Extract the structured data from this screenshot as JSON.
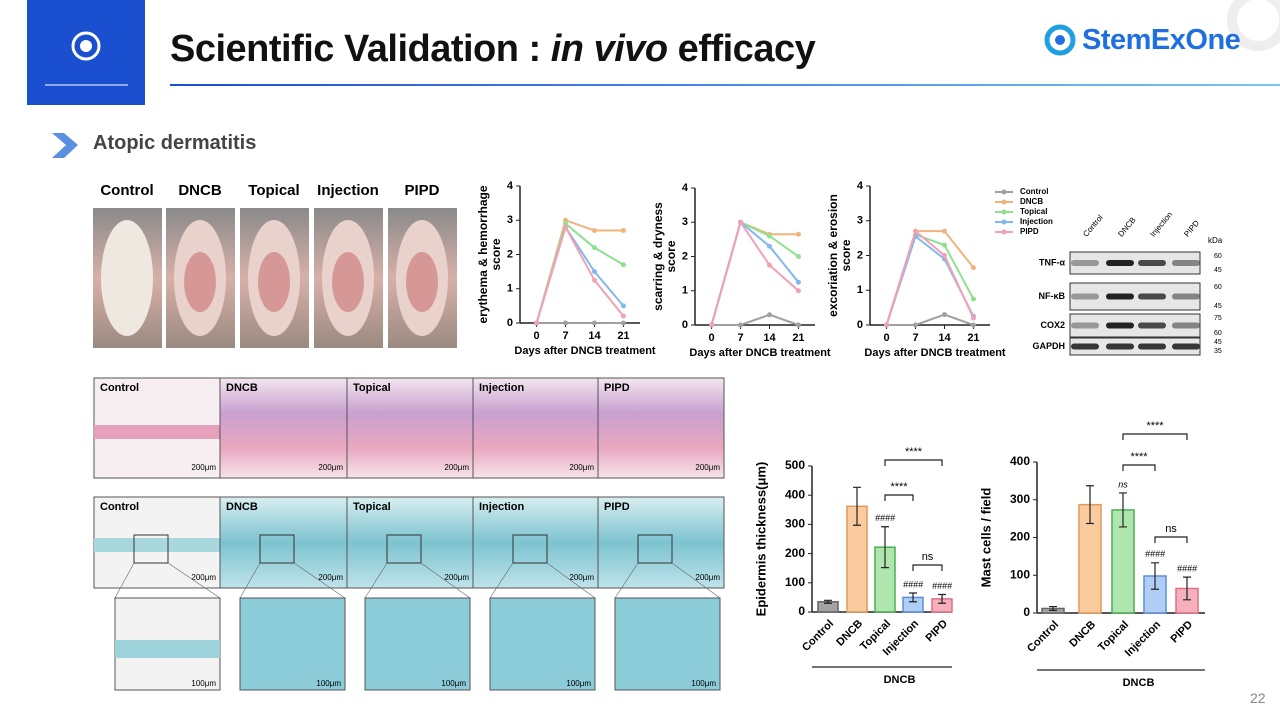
{
  "header": {
    "title": "Scientific Validation : ",
    "title_italic": "in vivo",
    "title_end": " efficacy",
    "logo": "StemExOne"
  },
  "section": "Atopic dermatitis",
  "groups": [
    "Control",
    "DNCB",
    "Topical",
    "Injection",
    "PIPD"
  ],
  "chart_data": [
    {
      "type": "line",
      "ylabel": [
        "erythema & hemorrhage",
        "score"
      ],
      "xlabel": "Days after DNCB treatment",
      "x": [
        0,
        7,
        14,
        21
      ],
      "xlim": [
        -4,
        25
      ],
      "xticks": [
        0,
        7,
        14,
        21
      ],
      "ylim": [
        0,
        4
      ],
      "yticks": [
        0,
        1,
        2,
        3,
        4
      ],
      "series": [
        {
          "color": "#a0a0a0",
          "values": [
            0,
            0,
            0,
            0
          ]
        },
        {
          "color": "#f2b47c",
          "values": [
            0,
            3,
            2.7,
            2.7
          ]
        },
        {
          "color": "#8fe08f",
          "values": [
            0,
            2.9,
            2.2,
            1.7
          ]
        },
        {
          "color": "#82b8f0",
          "values": [
            0,
            2.8,
            1.5,
            0.5
          ]
        },
        {
          "color": "#f4a0b4",
          "values": [
            0,
            2.8,
            1.25,
            0.2
          ]
        }
      ]
    },
    {
      "type": "line",
      "ylabel": [
        "scarring & dryness",
        "score"
      ],
      "xlabel": "Days after DNCB treatment",
      "x": [
        0,
        7,
        14,
        21
      ],
      "xlim": [
        -4,
        25
      ],
      "xticks": [
        0,
        7,
        14,
        21
      ],
      "ylim": [
        0,
        4
      ],
      "yticks": [
        0,
        1,
        2,
        3,
        4
      ],
      "series": [
        {
          "color": "#a0a0a0",
          "values": [
            0,
            0,
            0.3,
            0
          ]
        },
        {
          "color": "#f2b47c",
          "values": [
            0,
            3,
            2.65,
            2.65
          ]
        },
        {
          "color": "#8fe08f",
          "values": [
            0,
            3,
            2.6,
            2.0
          ]
        },
        {
          "color": "#82b8f0",
          "values": [
            0,
            3,
            2.3,
            1.25
          ]
        },
        {
          "color": "#f4a0b4",
          "values": [
            0,
            3,
            1.75,
            1.0
          ]
        }
      ]
    },
    {
      "type": "line",
      "ylabel": [
        "excoriation & erosion",
        "score"
      ],
      "xlabel": "Days after DNCB treatment",
      "x": [
        0,
        7,
        14,
        21
      ],
      "xlim": [
        -4,
        25
      ],
      "xticks": [
        0,
        7,
        14,
        21
      ],
      "ylim": [
        0,
        4
      ],
      "yticks": [
        0,
        1,
        2,
        3,
        4
      ],
      "series": [
        {
          "name": "Control",
          "color": "#a0a0a0",
          "values": [
            0,
            0,
            0.3,
            0
          ]
        },
        {
          "name": "DNCB",
          "color": "#f2b47c",
          "values": [
            0,
            2.7,
            2.7,
            1.65
          ]
        },
        {
          "name": "Topical",
          "color": "#8fe08f",
          "values": [
            0,
            2.6,
            2.3,
            0.75
          ]
        },
        {
          "name": "Injection",
          "color": "#82b8f0",
          "values": [
            0,
            2.55,
            1.9,
            0.25
          ]
        },
        {
          "name": "PIPD",
          "color": "#f4a0b4",
          "values": [
            0,
            2.7,
            2.0,
            0.2
          ]
        }
      ]
    },
    {
      "type": "bar",
      "ylabel": "Epidermis thickness(μm)",
      "categories": [
        "Control",
        "DNCB",
        "Topical",
        "Injection",
        "PIPD"
      ],
      "values": [
        35,
        362,
        222,
        50,
        45
      ],
      "errors": [
        5,
        65,
        70,
        15,
        15
      ],
      "colors": [
        "#a3a3a3",
        "#fbcba0",
        "#aee6ae",
        "#b0cdf5",
        "#f6b0bc"
      ],
      "edge_colors": [
        "#666666",
        "#e09a5a",
        "#4caf50",
        "#5b8fd6",
        "#e07088"
      ],
      "ylim": [
        0,
        500
      ],
      "yticks": [
        0,
        100,
        200,
        300,
        400,
        500
      ],
      "group_label": "DNCB",
      "sig_labels": [
        null,
        null,
        "####",
        "####",
        "####"
      ],
      "comparisons": [
        {
          "between": [
            2,
            4
          ],
          "label": "****"
        },
        {
          "between": [
            2,
            3
          ],
          "label": "****"
        },
        {
          "between": [
            3,
            4
          ],
          "label": "ns"
        }
      ]
    },
    {
      "type": "bar",
      "ylabel": "Mast cells / field",
      "categories": [
        "Control",
        "DNCB",
        "Topical",
        "Injection",
        "PIPD"
      ],
      "values": [
        12,
        287,
        273,
        98,
        65
      ],
      "errors": [
        5,
        50,
        45,
        35,
        30
      ],
      "colors": [
        "#a3a3a3",
        "#fbcba0",
        "#aee6ae",
        "#b0cdf5",
        "#f6b0bc"
      ],
      "edge_colors": [
        "#666666",
        "#e09a5a",
        "#4caf50",
        "#5b8fd6",
        "#e07088"
      ],
      "ylim": [
        0,
        400
      ],
      "yticks": [
        0,
        100,
        200,
        300,
        400
      ],
      "group_label": "DNCB",
      "sig_labels": [
        null,
        null,
        "ns",
        "####",
        "####"
      ],
      "comparisons": [
        {
          "between": [
            2,
            4
          ],
          "label": "****"
        },
        {
          "between": [
            2,
            3
          ],
          "label": "****"
        },
        {
          "between": [
            3,
            4
          ],
          "label": "ns"
        }
      ]
    }
  ],
  "blot": {
    "lanes": [
      "Control",
      "DNCB",
      "Injection",
      "PIPD"
    ],
    "unit": "kDa",
    "rows": [
      {
        "label": "TNF-α",
        "markers": [
          "60",
          "45"
        ]
      },
      {
        "label": "NF-κB",
        "markers": [
          "60",
          "45"
        ]
      },
      {
        "label": "COX2",
        "markers": [
          "75",
          "60"
        ]
      },
      {
        "label": "GAPDH",
        "markers": [
          "45",
          "35"
        ]
      }
    ]
  },
  "histology": {
    "scale_large": "200μm",
    "scale_small": "100μm"
  },
  "page_number": "22"
}
